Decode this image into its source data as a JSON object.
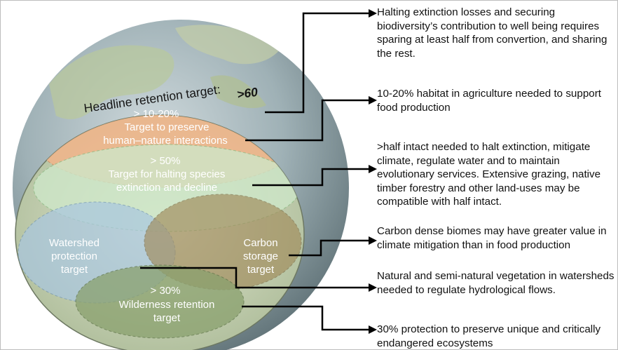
{
  "globe": {
    "headline_label": "Headline retention target:",
    "headline_value": ">60",
    "zones": {
      "human_nature": {
        "pct": "> 10-20%",
        "line1": "Target to preserve",
        "line2": "human–nature interactions"
      },
      "halting": {
        "pct": "> 50%",
        "line1": "Target for halting species",
        "line2": "extinction and decline"
      },
      "watershed": {
        "line1": "Watershed",
        "line2": "protection",
        "line3": "target"
      },
      "carbon": {
        "line1": "Carbon",
        "line2": "storage",
        "line3": "target"
      },
      "wilderness": {
        "pct": "> 30%",
        "line1": "Wilderness retention",
        "line2": "target"
      }
    }
  },
  "notes": [
    "Halting extinction losses and securing biodiversity’s contribution to well being requires sparing at least half from convertion, and sharing the rest.",
    "10-20% habitat in agriculture needed to support food production",
    ">half intact needed to halt extinction, mitigate climate, regulate water and to maintain evolutionary services. Extensive grazing, native timber forestry and other land-uses may be compatible with half intact.",
    "Carbon dense biomes may have greater value in climate mitigation than in food production",
    "Natural and semi-natural vegetation in watersheds needed to regulate hydrological flows.",
    "30% protection to preserve unique and critically endangered ecosystems"
  ]
}
